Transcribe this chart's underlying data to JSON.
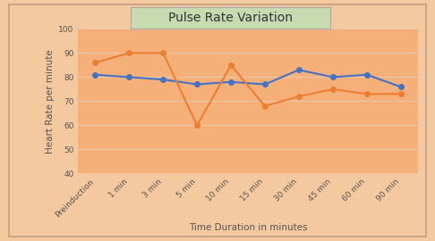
{
  "title": "Pulse Rate Variation",
  "xlabel": "Time Duration in minutes",
  "ylabel": "Heart Rate per minute",
  "x_labels": [
    "Preinduction",
    "1 min",
    "3 min",
    "5 min",
    "10 min",
    "15 min",
    "30 min",
    "45 min",
    "60 min",
    "90 min"
  ],
  "mgso4_values": [
    81,
    80,
    79,
    77,
    78,
    77,
    83,
    80,
    81,
    76
  ],
  "neostigmine_values": [
    86,
    90,
    90,
    60,
    85,
    68,
    72,
    75,
    73,
    73
  ],
  "mgso4_color": "#4472c4",
  "neostigmine_color": "#ed7d31",
  "ylim": [
    40,
    100
  ],
  "yticks": [
    40,
    50,
    60,
    70,
    80,
    90,
    100
  ],
  "plot_bg_color": "#f5b07a",
  "outer_bg_color": "#f5c9a0",
  "title_box_color": "#c8dbb0",
  "title_fontsize": 10,
  "axis_label_fontsize": 7.5,
  "tick_fontsize": 6.5,
  "grid_color": "#e8c8a8",
  "line_width": 1.5,
  "marker": "o",
  "marker_size": 4
}
